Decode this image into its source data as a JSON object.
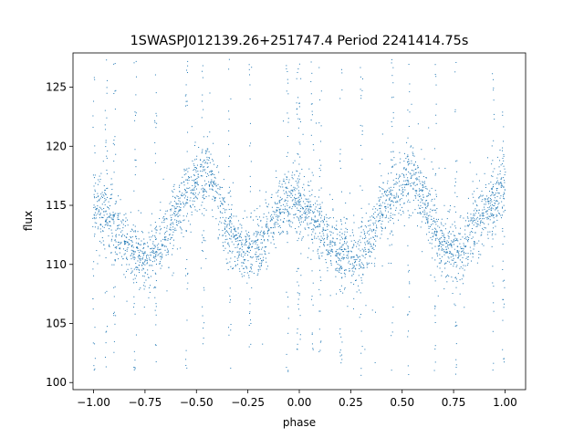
{
  "chart_data": {
    "type": "scatter",
    "title": "1SWASPJ012139.26+251747.4 Period 2241414.75s",
    "xlabel": "phase",
    "ylabel": "flux",
    "xlim": [
      -1.1,
      1.1
    ],
    "ylim": [
      99.4,
      127.9
    ],
    "x_ticks": [
      -1.0,
      -0.75,
      -0.5,
      -0.25,
      0.0,
      0.25,
      0.5,
      0.75,
      1.0
    ],
    "x_tick_labels": [
      "−1.00",
      "−0.75",
      "−0.50",
      "−0.25",
      "0.00",
      "0.25",
      "0.50",
      "0.75",
      "1.00"
    ],
    "y_ticks": [
      100,
      105,
      110,
      115,
      120,
      125
    ],
    "y_tick_labels": [
      "100",
      "105",
      "110",
      "115",
      "120",
      "125"
    ],
    "grid": false,
    "marker_color": "#1f77b4",
    "series": [
      {
        "phase_range": [
          -1.0,
          1.0
        ],
        "profile_phase": [
          0.0,
          0.05,
          0.1,
          0.15,
          0.2,
          0.25,
          0.3,
          0.35,
          0.4,
          0.45,
          0.5,
          0.55,
          0.6,
          0.65,
          0.7,
          0.75,
          0.8,
          0.85,
          0.9,
          0.95,
          1.0
        ],
        "profile_flux": [
          115.0,
          114.5,
          113.0,
          111.8,
          110.8,
          110.5,
          111.0,
          112.5,
          114.5,
          116.0,
          117.0,
          117.8,
          116.0,
          113.0,
          111.5,
          111.2,
          111.8,
          113.0,
          114.5,
          115.5,
          116.2
        ],
        "outlier_phase_columns": [
          0.0,
          0.06,
          0.1,
          0.2,
          0.3,
          0.45,
          0.53,
          0.66,
          0.76,
          0.94,
          0.99
        ]
      }
    ]
  }
}
